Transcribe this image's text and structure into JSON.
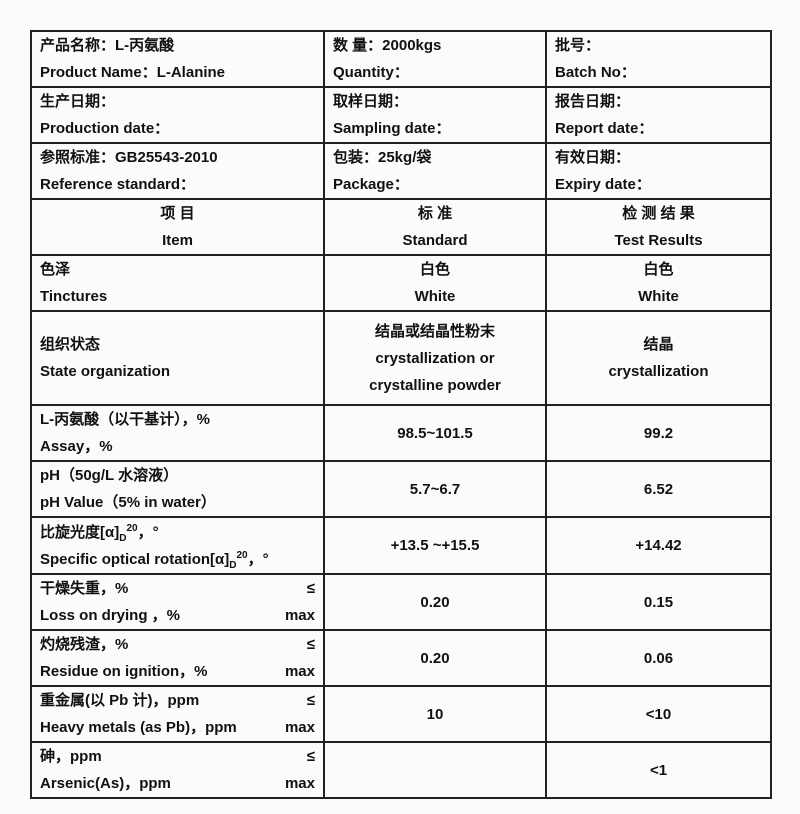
{
  "header_rows": [
    [
      {
        "zh": "产品名称：L-丙氨酸",
        "en": "Product Name：L-Alanine"
      },
      {
        "zh": "数 量：2000kgs",
        "en": "Quantity："
      },
      {
        "zh": "批号：",
        "en": "Batch No："
      }
    ],
    [
      {
        "zh": "生产日期：",
        "en": "Production date："
      },
      {
        "zh": "取样日期：",
        "en": "Sampling date："
      },
      {
        "zh": "报告日期：",
        "en": "Report date："
      }
    ],
    [
      {
        "zh": "参照标准：GB25543-2010",
        "en": "Reference standard："
      },
      {
        "zh": "包装：25kg/袋",
        "en": "Package："
      },
      {
        "zh": "有效日期：",
        "en": "Expiry date："
      }
    ]
  ],
  "columns": [
    {
      "zh": "项 目",
      "en": "Item"
    },
    {
      "zh": "标 准",
      "en": "Standard"
    },
    {
      "zh": "检 测 结 果",
      "en": "Test Results"
    }
  ],
  "items": [
    {
      "zh": "色泽",
      "en": "Tinctures",
      "std": [
        "白色",
        "White"
      ],
      "res": [
        "白色",
        "White"
      ]
    },
    {
      "zh": "组织状态",
      "en": "State organization",
      "std": [
        "结晶或结晶性粉末",
        "crystallization or",
        "crystalline powder"
      ],
      "res": [
        "结晶",
        "crystallization"
      ]
    },
    {
      "zh": "L-丙氨酸（以干基计），%",
      "en": "Assay，%",
      "std": [
        "98.5~101.5"
      ],
      "res": [
        "99.2"
      ]
    },
    {
      "zh": "pH（50g/L 水溶液）",
      "en": "pH Value（5% in water）",
      "std": [
        "5.7~6.7"
      ],
      "res": [
        "6.52"
      ]
    },
    {
      "zh": "比旋光度[α]",
      "zh_sub": "D",
      "zh_sup": "20",
      "zh_tail": "，°",
      "en": "Specific optical rotation[α]",
      "en_sub": "D",
      "en_sup": "20",
      "en_tail": "，°",
      "std": [
        "+13.5 ~+15.5"
      ],
      "res": [
        "+14.42"
      ]
    },
    {
      "zh": "干燥失重，%",
      "en": "Loss on drying ，%",
      "le": "≤",
      "max": "max",
      "std": [
        "0.20"
      ],
      "res": [
        "0.15"
      ]
    },
    {
      "zh": "灼烧残渣，%",
      "en": "Residue on ignition，%",
      "le": "≤",
      "max": "max",
      "std": [
        "0.20"
      ],
      "res": [
        "0.06"
      ]
    },
    {
      "zh": "重金属(以 Pb 计)，ppm",
      "en": "Heavy metals (as Pb)，ppm",
      "le": "≤",
      "max": "max",
      "std": [
        "10"
      ],
      "res": [
        "<10"
      ]
    },
    {
      "zh": "砷，ppm",
      "en": "Arsenic(As)，ppm",
      "le": "≤",
      "max": "max",
      "std": [],
      "res": [
        "<1"
      ]
    }
  ]
}
